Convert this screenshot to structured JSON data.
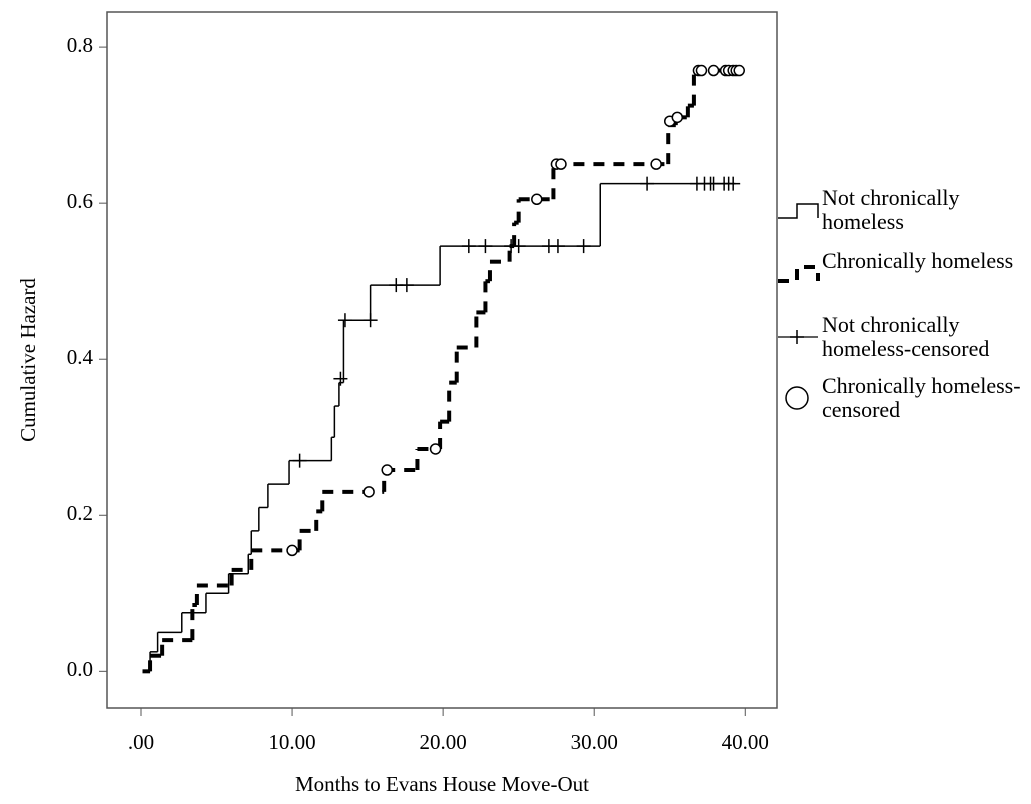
{
  "chart_data": {
    "type": "step",
    "x_label": "Months to Evans House Move-Out",
    "y_label": "Cumulative Hazard",
    "xlim": [
      -2.25,
      42.1
    ],
    "ylim": [
      -0.047,
      0.845
    ],
    "xticks": [
      {
        "value": 0,
        "label": ".00"
      },
      {
        "value": 10,
        "label": "10.00"
      },
      {
        "value": 20,
        "label": "20.00"
      },
      {
        "value": 30,
        "label": "30.00"
      },
      {
        "value": 40,
        "label": "40.00"
      }
    ],
    "yticks": [
      {
        "value": 0,
        "label": "0.0"
      },
      0.2,
      0.4,
      0.6,
      0.8
    ],
    "series": [
      {
        "name": "Not chronically homeless",
        "color": "#000000",
        "style": "solid",
        "x": [
          0.3,
          0.6,
          1.1,
          2.7,
          4.3,
          5.8,
          7.1,
          7.3,
          7.8,
          8.4,
          9.8,
          12.6,
          12.8,
          13.1,
          13.4,
          15.2,
          19.8,
          30.4,
          39.3
        ],
        "values": [
          0,
          0.025,
          0.05,
          0.075,
          0.1,
          0.125,
          0.15,
          0.18,
          0.21,
          0.24,
          0.27,
          0.3,
          0.34,
          0.37,
          0.45,
          0.495,
          0.545,
          0.625,
          0.625
        ]
      },
      {
        "name": "Chronically homeless",
        "color": "#000000",
        "style": "dashed",
        "x": [
          0.1,
          0.6,
          1.4,
          3.4,
          3.7,
          6.0,
          7.3,
          10.5,
          11.6,
          12.0,
          16.1,
          18.3,
          19.8,
          20.4,
          20.9,
          22.2,
          22.8,
          23.1,
          24.4,
          24.7,
          25.0,
          27.3,
          34.9,
          35.4,
          36.2,
          36.6,
          39.6
        ],
        "values": [
          0,
          0.02,
          0.04,
          0.085,
          0.11,
          0.13,
          0.155,
          0.18,
          0.205,
          0.23,
          0.258,
          0.285,
          0.32,
          0.37,
          0.415,
          0.46,
          0.5,
          0.525,
          0.545,
          0.575,
          0.605,
          0.65,
          0.7,
          0.71,
          0.725,
          0.77,
          0.77
        ]
      },
      {
        "name": "Not chronically homeless-censored",
        "color": "#000000",
        "style": "plus",
        "x": [
          10.5,
          13.2,
          13.5,
          15.2,
          16.9,
          17.6,
          21.7,
          22.8,
          24.5,
          25.0,
          27.0,
          27.6,
          29.3,
          33.5,
          36.8,
          37.3,
          37.7,
          37.9,
          38.6,
          38.9,
          39.2
        ],
        "values": [
          0.27,
          0.375,
          0.45,
          0.45,
          0.495,
          0.495,
          0.545,
          0.545,
          0.545,
          0.545,
          0.545,
          0.545,
          0.545,
          0.625,
          0.625,
          0.625,
          0.625,
          0.625,
          0.625,
          0.625,
          0.625
        ]
      },
      {
        "name": "Chronically homeless-censored",
        "color": "#000000",
        "style": "circle",
        "x": [
          10.0,
          15.1,
          16.3,
          19.5,
          26.2,
          27.5,
          27.8,
          34.1,
          35.0,
          35.5,
          36.9,
          37.1,
          37.9,
          38.7,
          38.9,
          39.2,
          39.4,
          39.6
        ],
        "values": [
          0.155,
          0.23,
          0.258,
          0.285,
          0.605,
          0.65,
          0.65,
          0.65,
          0.705,
          0.71,
          0.77,
          0.77,
          0.77,
          0.77,
          0.77,
          0.77,
          0.77,
          0.77
        ]
      }
    ]
  }
}
